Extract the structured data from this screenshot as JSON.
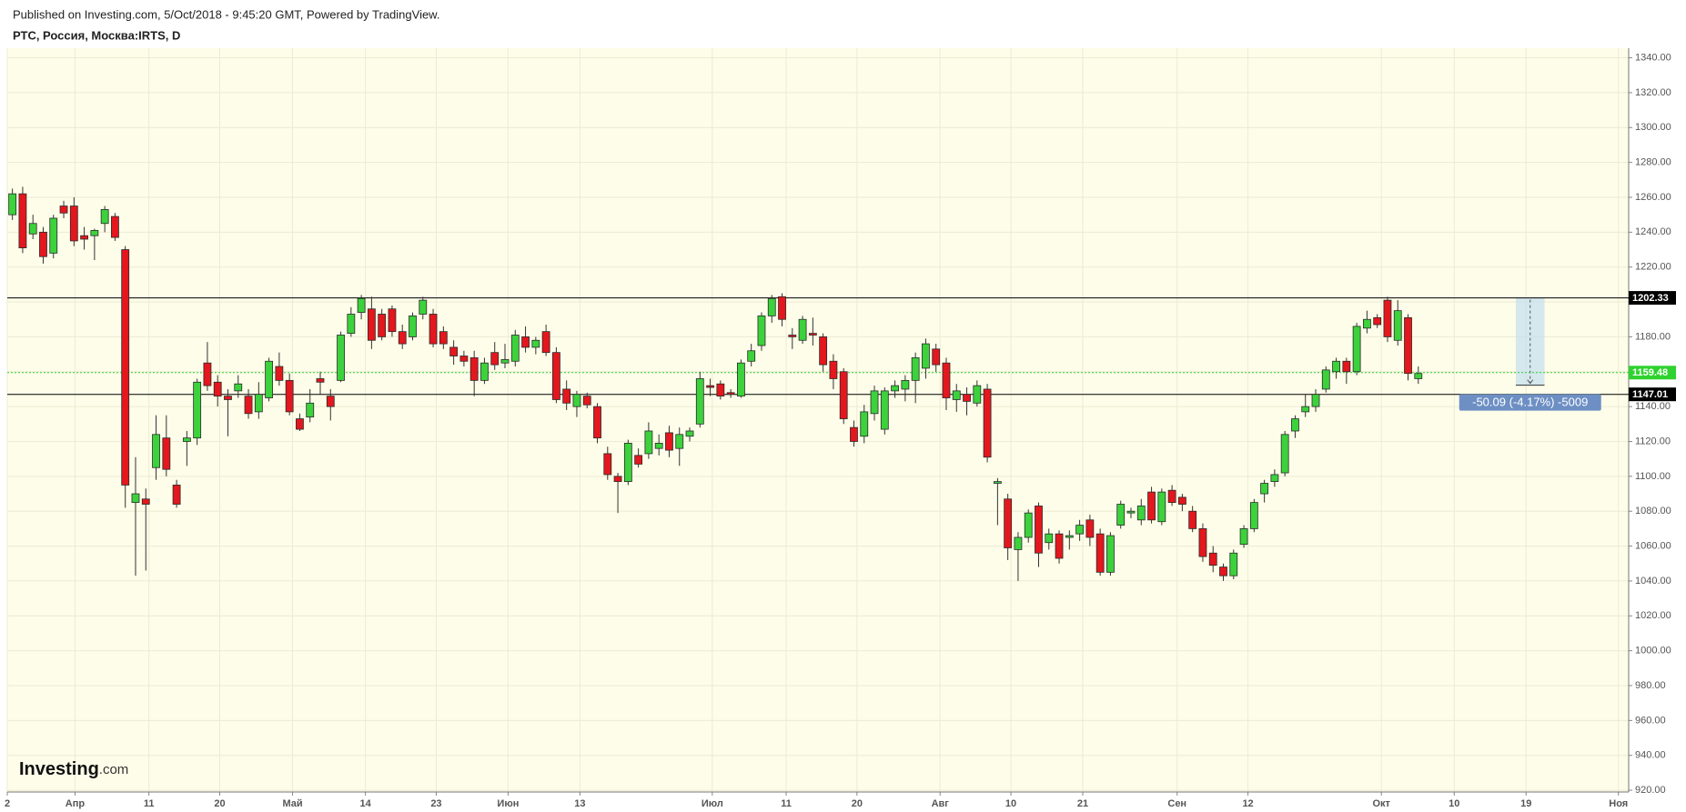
{
  "chart_data": {
    "type": "candlestick",
    "header": "Published on Investing.com, 5/Oct/2018 - 9:45:20 GMT, Powered by TradingView.",
    "title": "РТС, Россия, Москва:IRTS, D",
    "logo": {
      "name": "Investing",
      "suffix": ".com"
    },
    "up_color": "#3cd23c",
    "down_color": "#e3171d",
    "background": "#fdfde9",
    "grid": true,
    "open": [
      1250,
      1262,
      1239,
      1240,
      1228,
      1255,
      1255,
      1238,
      1238,
      1245,
      1249,
      1230,
      1085,
      1087,
      1105,
      1122,
      1095,
      1120,
      1122,
      1165,
      1154,
      1146,
      1149,
      1146,
      1137,
      1145,
      1163,
      1155,
      1133,
      1134,
      1156,
      1146,
      1155,
      1182,
      1194,
      1196,
      1193,
      1196,
      1183,
      1180,
      1193,
      1193,
      1183,
      1174,
      1169,
      1168,
      1155,
      1171,
      1165,
      1166,
      1180,
      1174,
      1183,
      1171,
      1150,
      1140,
      1146,
      1140,
      1113,
      1100,
      1097,
      1112,
      1113,
      1116,
      1125,
      1116,
      1123,
      1130,
      1152,
      1153,
      1148,
      1146,
      1166,
      1175,
      1192,
      1203,
      1181,
      1178,
      1182,
      1180,
      1166,
      1160,
      1128,
      1123,
      1136,
      1127,
      1149,
      1150,
      1155,
      1162,
      1173,
      1165,
      1144,
      1147,
      1142,
      1150,
      1096,
      1087,
      1058,
      1065,
      1083,
      1062,
      1067,
      1065,
      1067,
      1075,
      1067,
      1045,
      1072,
      1079,
      1075,
      1091,
      1074,
      1092,
      1088,
      1080,
      1070,
      1056,
      1048,
      1043,
      1061,
      1070,
      1090,
      1097,
      1102,
      1126,
      1137,
      1140,
      1150,
      1160,
      1166,
      1160,
      1185,
      1191,
      1201,
      1178,
      1191,
      1156
    ],
    "high": [
      1265,
      1266,
      1250,
      1243,
      1250,
      1258,
      1260,
      1243,
      1242,
      1255,
      1251,
      1232,
      1111,
      1093,
      1135,
      1135,
      1098,
      1126,
      1156,
      1177,
      1158,
      1150,
      1158,
      1150,
      1154,
      1168,
      1171,
      1159,
      1136,
      1150,
      1160,
      1150,
      1183,
      1197,
      1204,
      1203,
      1196,
      1198,
      1187,
      1194,
      1203,
      1196,
      1186,
      1178,
      1172,
      1172,
      1168,
      1177,
      1176,
      1184,
      1186,
      1180,
      1187,
      1174,
      1155,
      1149,
      1148,
      1142,
      1117,
      1102,
      1121,
      1116,
      1131,
      1124,
      1129,
      1128,
      1128,
      1160,
      1156,
      1155,
      1150,
      1167,
      1176,
      1194,
      1204,
      1205,
      1185,
      1192,
      1191,
      1182,
      1170,
      1162,
      1132,
      1141,
      1152,
      1151,
      1155,
      1158,
      1171,
      1179,
      1176,
      1168,
      1153,
      1151,
      1155,
      1153,
      1099,
      1090,
      1068,
      1081,
      1085,
      1070,
      1069,
      1069,
      1075,
      1078,
      1070,
      1068,
      1086,
      1082,
      1087,
      1094,
      1093,
      1095,
      1090,
      1083,
      1073,
      1060,
      1050,
      1058,
      1072,
      1087,
      1098,
      1104,
      1126,
      1135,
      1147,
      1150,
      1163,
      1168,
      1168,
      1188,
      1195,
      1193,
      1203,
      1201,
      1193,
      1163
    ],
    "low": [
      1247,
      1228,
      1236,
      1222,
      1225,
      1248,
      1232,
      1230,
      1224,
      1240,
      1235,
      1082,
      1043,
      1046,
      1098,
      1100,
      1082,
      1106,
      1118,
      1149,
      1140,
      1123,
      1145,
      1133,
      1133,
      1143,
      1152,
      1135,
      1126,
      1131,
      1147,
      1132,
      1154,
      1180,
      1190,
      1173,
      1178,
      1180,
      1173,
      1178,
      1190,
      1174,
      1173,
      1164,
      1163,
      1146,
      1153,
      1161,
      1162,
      1163,
      1171,
      1170,
      1169,
      1142,
      1138,
      1134,
      1139,
      1119,
      1098,
      1079,
      1095,
      1105,
      1110,
      1112,
      1111,
      1106,
      1120,
      1128,
      1146,
      1144,
      1145,
      1145,
      1163,
      1172,
      1188,
      1186,
      1173,
      1176,
      1175,
      1160,
      1150,
      1130,
      1117,
      1119,
      1132,
      1124,
      1145,
      1143,
      1142,
      1156,
      1160,
      1138,
      1137,
      1135,
      1140,
      1108,
      1072,
      1052,
      1040,
      1062,
      1048,
      1058,
      1050,
      1058,
      1063,
      1060,
      1043,
      1043,
      1070,
      1076,
      1072,
      1073,
      1072,
      1083,
      1080,
      1068,
      1051,
      1045,
      1040,
      1041,
      1059,
      1068,
      1085,
      1094,
      1100,
      1122,
      1134,
      1137,
      1148,
      1156,
      1153,
      1158,
      1182,
      1185,
      1177,
      1175,
      1155,
      1153
    ],
    "close": [
      1262,
      1231,
      1245,
      1226,
      1248,
      1251,
      1235,
      1236,
      1241,
      1253,
      1237,
      1095,
      1090,
      1084,
      1124,
      1104,
      1084,
      1122,
      1154,
      1152,
      1146,
      1144,
      1153,
      1136,
      1147,
      1166,
      1155,
      1137,
      1127,
      1142,
      1154,
      1140,
      1181,
      1193,
      1202,
      1178,
      1180,
      1183,
      1176,
      1192,
      1201,
      1176,
      1176,
      1169,
      1166,
      1155,
      1165,
      1164,
      1167,
      1181,
      1174,
      1178,
      1171,
      1144,
      1142,
      1147,
      1141,
      1122,
      1101,
      1097,
      1119,
      1107,
      1126,
      1119,
      1115,
      1124,
      1126,
      1156,
      1151,
      1146,
      1147,
      1165,
      1172,
      1192,
      1202,
      1190,
      1180,
      1190,
      1181,
      1164,
      1156,
      1133,
      1120,
      1137,
      1149,
      1149,
      1152,
      1155,
      1168,
      1176,
      1164,
      1145,
      1149,
      1143,
      1152,
      1111,
      1097,
      1059,
      1065,
      1079,
      1056,
      1067,
      1053,
      1066,
      1072,
      1065,
      1045,
      1066,
      1084,
      1080,
      1083,
      1075,
      1091,
      1085,
      1084,
      1070,
      1054,
      1049,
      1043,
      1056,
      1070,
      1085,
      1096,
      1101,
      1124,
      1133,
      1140,
      1147,
      1161,
      1166,
      1160,
      1186,
      1190,
      1187,
      1180,
      1195,
      1159,
      1159
    ],
    "xlim": [
      -0.5,
      157.5
    ],
    "xticks": [
      {
        "value": -0.5,
        "label": "2"
      },
      {
        "value": 6.1,
        "label": "Апр"
      },
      {
        "value": 13.3,
        "label": "11"
      },
      {
        "value": 20.2,
        "label": "20"
      },
      {
        "value": 27.3,
        "label": "Май"
      },
      {
        "value": 34.4,
        "label": "14"
      },
      {
        "value": 41.3,
        "label": "23"
      },
      {
        "value": 48.3,
        "label": "Июн"
      },
      {
        "value": 55.3,
        "label": "13"
      },
      {
        "value": 68.2,
        "label": "Июл"
      },
      {
        "value": 75.4,
        "label": "11"
      },
      {
        "value": 82.3,
        "label": "20"
      },
      {
        "value": 90.4,
        "label": "Авг"
      },
      {
        "value": 97.3,
        "label": "10"
      },
      {
        "value": 104.3,
        "label": "21"
      },
      {
        "value": 113.5,
        "label": "Сен"
      },
      {
        "value": 120.4,
        "label": "12"
      },
      {
        "value": 133.4,
        "label": "Окт"
      },
      {
        "value": 140.5,
        "label": "10"
      },
      {
        "value": 147.5,
        "label": "19"
      },
      {
        "value": 156.5,
        "label": "Ноя"
      }
    ],
    "ylim": [
      919,
      1345.5
    ],
    "yticks": [
      {
        "value": 920,
        "label": "920.00"
      },
      {
        "value": 940,
        "label": "940.00"
      },
      {
        "value": 960,
        "label": "960.00"
      },
      {
        "value": 980,
        "label": "980.00"
      },
      {
        "value": 1000,
        "label": "1000.00"
      },
      {
        "value": 1020,
        "label": "1020.00"
      },
      {
        "value": 1040,
        "label": "1040.00"
      },
      {
        "value": 1060,
        "label": "1060.00"
      },
      {
        "value": 1080,
        "label": "1080.00"
      },
      {
        "value": 1100,
        "label": "1100.00"
      },
      {
        "value": 1120,
        "label": "1120.00"
      },
      {
        "value": 1140,
        "label": "1140.00"
      },
      {
        "value": 1160,
        "label": "1160.00"
      },
      {
        "value": 1180,
        "label": "1180.00"
      },
      {
        "value": 1200,
        "label": "1200.00"
      },
      {
        "value": 1220,
        "label": "1220.00"
      },
      {
        "value": 1240,
        "label": "1240.00"
      },
      {
        "value": 1260,
        "label": "1260.00"
      },
      {
        "value": 1280,
        "label": "1280.00"
      },
      {
        "value": 1300,
        "label": "1300.00"
      },
      {
        "value": 1320,
        "label": "1320.00"
      },
      {
        "value": 1340,
        "label": "1340.00"
      }
    ],
    "price_lines": [
      {
        "value": 1202.33,
        "color": "#000000",
        "style": "solid"
      },
      {
        "value": 1159.48,
        "color": "#2fd22f",
        "style": "dotted"
      },
      {
        "value": 1147.01,
        "color": "#000000",
        "style": "solid"
      }
    ],
    "measure": {
      "from": 1202.33,
      "to": 1152.24,
      "label": "-50.09 (-4.17%) -5009",
      "color": "#6d8fc4"
    }
  }
}
